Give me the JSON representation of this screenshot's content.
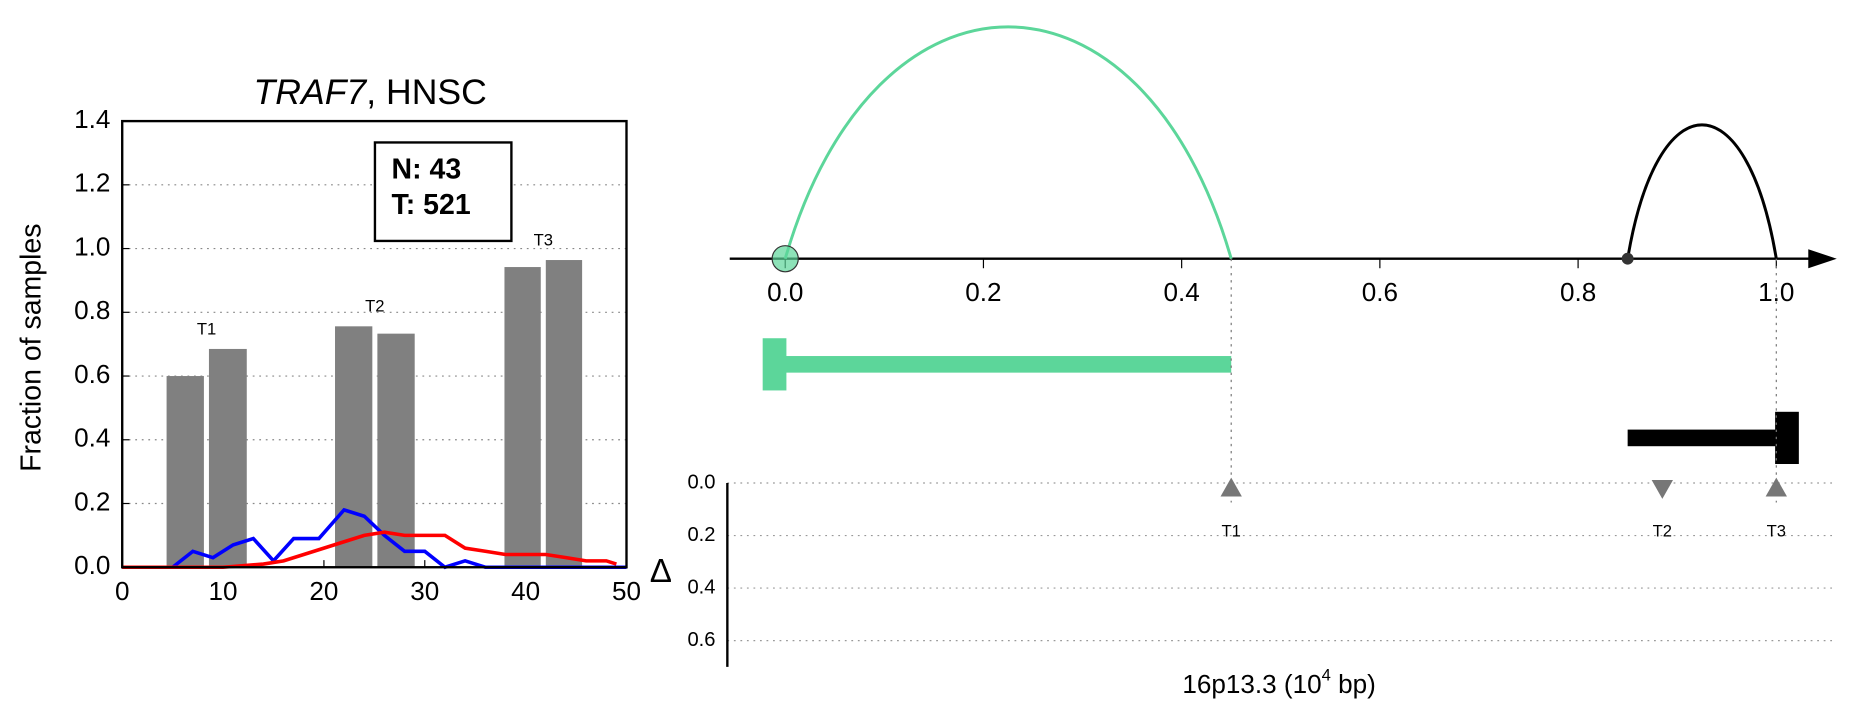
{
  "chart_data": [
    {
      "type": "bar",
      "title_gene": "TRAF7",
      "title_suffix": ", HNSC",
      "ylabel": "Fraction of samples",
      "xlim": [
        0,
        50
      ],
      "xticks": [
        0,
        10,
        20,
        30,
        40,
        50
      ],
      "ylim": [
        0,
        1.4
      ],
      "yticks": [
        {
          "value": 0,
          "label": "0.0"
        },
        {
          "value": 0.2,
          "label": "0.2"
        },
        {
          "value": 0.4,
          "label": "0.4"
        },
        {
          "value": 0.6,
          "label": "0.6"
        },
        {
          "value": 0.8,
          "label": "0.8"
        },
        {
          "value": 1,
          "label": "1.0"
        },
        {
          "value": 1.2,
          "label": "1.2"
        },
        {
          "value": 1.4,
          "label": "1.4"
        }
      ],
      "grid": true,
      "annotation": [
        "N: 43",
        "T: 521"
      ],
      "bar_color": "#808080",
      "groups": [
        {
          "label": "T1",
          "bars": [
            {
              "x0": 4.4,
              "x1": 8.1,
              "value": 0.6
            },
            {
              "x0": 8.6,
              "x1": 12.35,
              "value": 0.685
            }
          ]
        },
        {
          "label": "T2",
          "bars": [
            {
              "x0": 21.1,
              "x1": 24.8,
              "value": 0.756
            },
            {
              "x0": 25.3,
              "x1": 29.0,
              "value": 0.733
            }
          ]
        },
        {
          "label": "T3",
          "bars": [
            {
              "x0": 37.9,
              "x1": 41.5,
              "value": 0.942
            },
            {
              "x0": 42.0,
              "x1": 45.6,
              "value": 0.964
            }
          ]
        }
      ],
      "series": [
        {
          "color": "#0000ff",
          "x": [
            0,
            2,
            4,
            5,
            7,
            9,
            11,
            13,
            15,
            17,
            19.5,
            22,
            24,
            26,
            28,
            30,
            32,
            34,
            36,
            38,
            40,
            42,
            44,
            46,
            48,
            50
          ],
          "values": [
            0,
            0,
            0,
            0,
            0.05,
            0.03,
            0.07,
            0.09,
            0.02,
            0.09,
            0.09,
            0.18,
            0.16,
            0.1,
            0.05,
            0.05,
            0,
            0.02,
            0,
            0,
            0,
            0,
            0,
            0,
            0,
            0
          ]
        },
        {
          "color": "#ff0000",
          "x": [
            0,
            2,
            4,
            6,
            8,
            10,
            12,
            14,
            16,
            18,
            20,
            22,
            24,
            26,
            28,
            30,
            32,
            34,
            36,
            38,
            40,
            42,
            44,
            46,
            48,
            49
          ],
          "values": [
            0,
            0,
            0,
            0,
            0,
            0,
            0.005,
            0.01,
            0.02,
            0.04,
            0.06,
            0.08,
            0.1,
            0.11,
            0.1,
            0.1,
            0.1,
            0.06,
            0.05,
            0.04,
            0.04,
            0.04,
            0.03,
            0.02,
            0.02,
            0.01
          ]
        }
      ]
    },
    {
      "type": "arc",
      "xlim": [
        -0.056,
        1.061
      ],
      "xticks": [
        {
          "value": 0,
          "label": "0.0"
        },
        {
          "value": 0.2,
          "label": "0.2"
        },
        {
          "value": 0.4,
          "label": "0.4"
        },
        {
          "value": 0.6,
          "label": "0.6"
        },
        {
          "value": 0.8,
          "label": "0.8"
        },
        {
          "value": 1,
          "label": "1.0"
        }
      ],
      "arcs": [
        {
          "start": 0,
          "end": 0.45,
          "color": "#5cd69a"
        },
        {
          "start": 0.85,
          "end": 1.0,
          "color": "#000000"
        }
      ],
      "genes": [
        {
          "start": 0,
          "end": 0.45,
          "color": "#5cd69a"
        },
        {
          "start": 1.0,
          "end": 0.85,
          "color": "#000000"
        }
      ],
      "delta_label": "Δ",
      "delta_lim": [
        0,
        0.7
      ],
      "delta_ticks": [
        {
          "value": 0,
          "label": "0.0"
        },
        {
          "value": 0.2,
          "label": "0.2"
        },
        {
          "value": 0.4,
          "label": "0.4"
        },
        {
          "value": 0.6,
          "label": "0.6"
        }
      ],
      "markers": [
        {
          "label": "T1",
          "x": 0.45,
          "delta": 0.02,
          "direction": "up"
        },
        {
          "label": "T2",
          "x": 0.885,
          "delta": 0.02,
          "direction": "down"
        },
        {
          "label": "T3",
          "x": 1.0,
          "delta": 0.02,
          "direction": "up"
        }
      ],
      "marker_color": "#777777",
      "xlabel_main": "16p13.3 (10",
      "xlabel_sup": "4",
      "xlabel_end": " bp)"
    }
  ]
}
